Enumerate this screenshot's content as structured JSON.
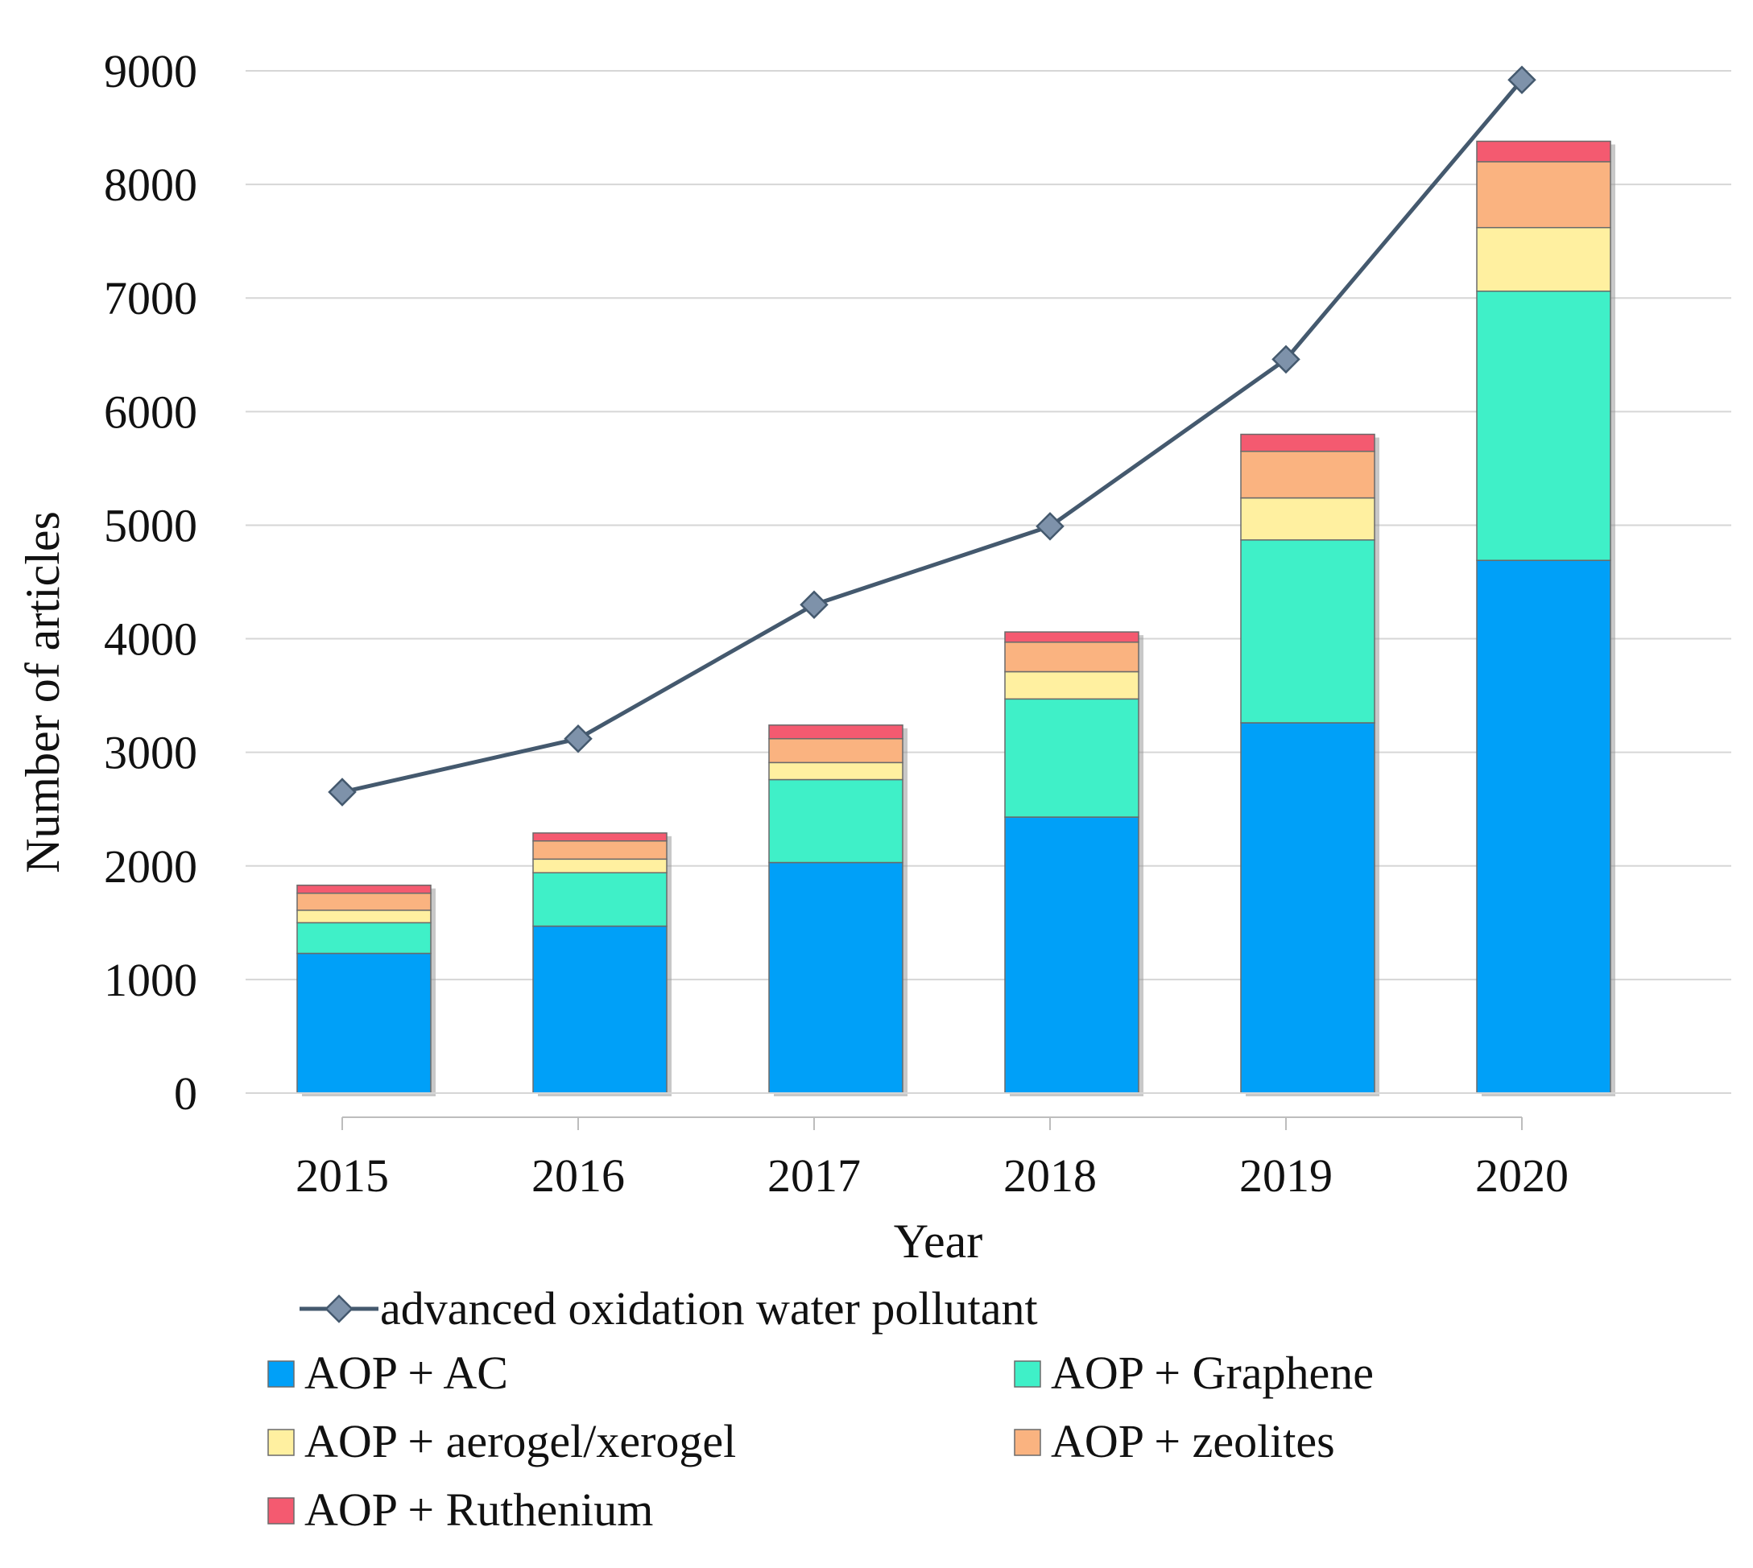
{
  "chart_data": {
    "type": "bar",
    "stacked": true,
    "xlabel": "Year",
    "ylabel": "Number of articles",
    "ylim": [
      0,
      9000
    ],
    "yticks": [
      "0",
      "1000",
      "2000",
      "3000",
      "4000",
      "5000",
      "6000",
      "7000",
      "8000",
      "9000"
    ],
    "categories": [
      "2015",
      "2016",
      "2017",
      "2018",
      "2019",
      "2020"
    ],
    "grid": true,
    "legend_position": "bottom",
    "series": [
      {
        "name": "AOP + AC",
        "color": "#00a0f8",
        "values": [
          1230,
          1470,
          2030,
          2430,
          3260,
          4690
        ]
      },
      {
        "name": "AOP + Graphene",
        "color": "#3ff0c8",
        "values": [
          270,
          470,
          730,
          1040,
          1610,
          2370
        ]
      },
      {
        "name": "AOP + aerogel/xerogel",
        "color": "#fff0a0",
        "values": [
          110,
          120,
          150,
          240,
          370,
          560
        ]
      },
      {
        "name": "AOP + zeolites",
        "color": "#fab380",
        "values": [
          150,
          160,
          210,
          260,
          410,
          580
        ]
      },
      {
        "name": "AOP + Ruthenium",
        "color": "#f45a70",
        "values": [
          70,
          70,
          120,
          90,
          150,
          180
        ]
      }
    ],
    "line_series": {
      "name": "advanced oxidation water pollutant",
      "color": "#44596e",
      "marker_color": "#7e92aa",
      "values": [
        2650,
        3120,
        4300,
        4990,
        6460,
        8920
      ]
    }
  }
}
